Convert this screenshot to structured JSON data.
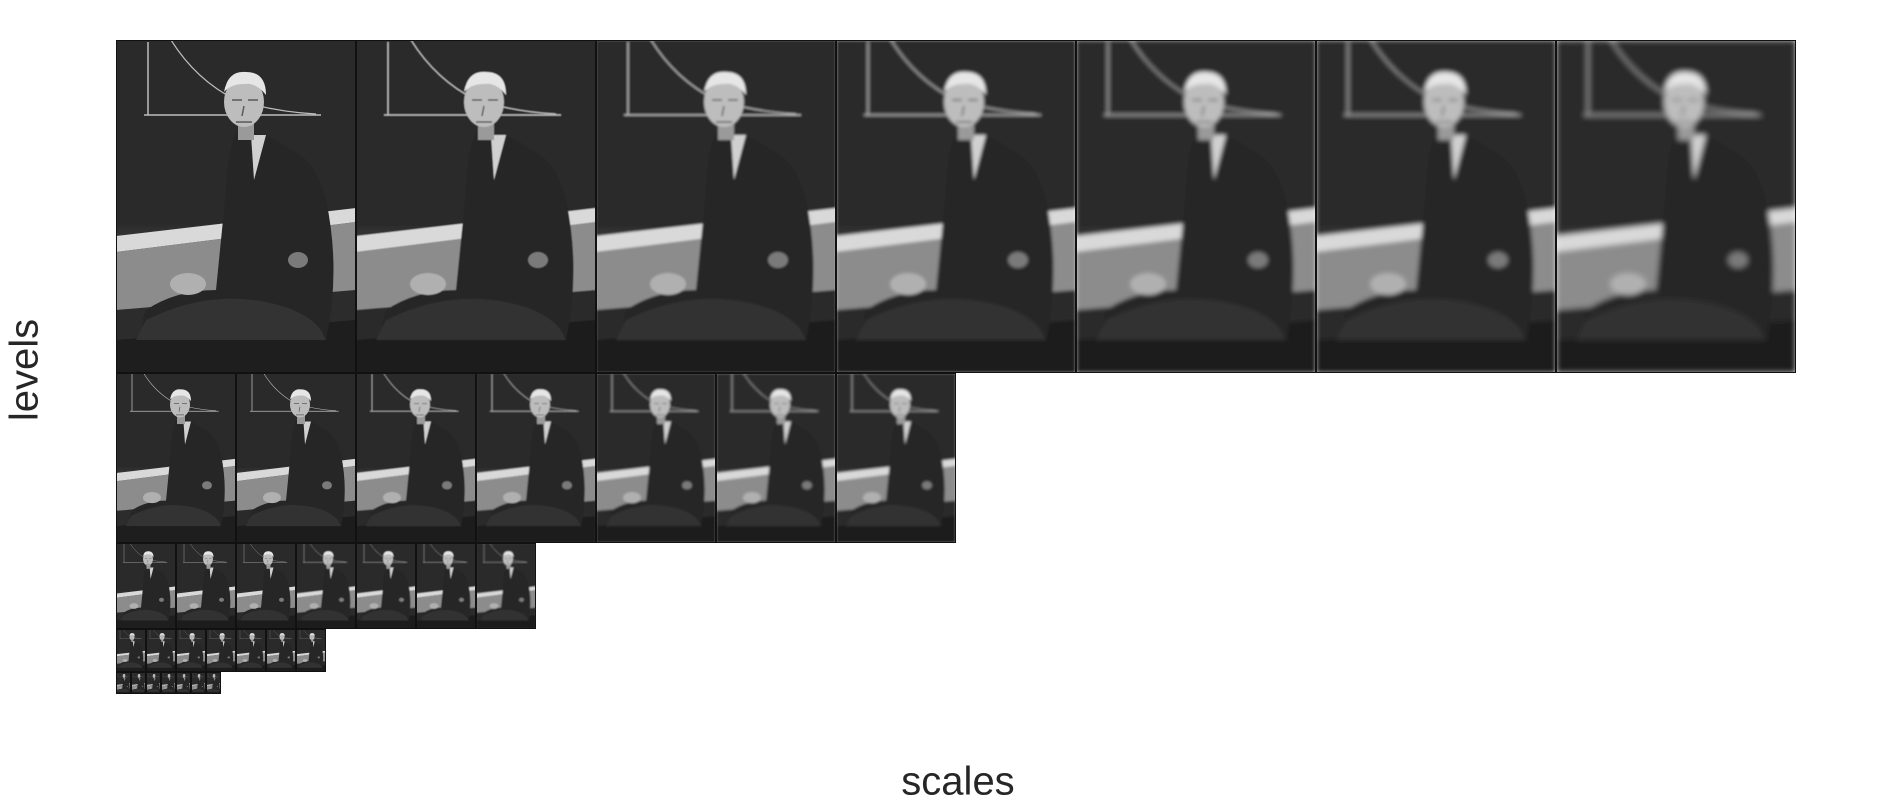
{
  "figure": {
    "xlabel": "scales",
    "ylabel": "levels"
  },
  "pyramid": {
    "levels": 5,
    "scales_per_level": 7,
    "blur_per_scale": [
      0,
      0.6,
      1.1,
      1.6,
      2.0,
      2.4,
      2.8
    ],
    "colors": {
      "background": "#ffffff",
      "tile_border": "#111111",
      "chalkboard": "#2a2a2a",
      "chalkboard_low": "#6f6f6f",
      "chalk_rail": "#d9d9d9",
      "floor": "#1e1e1e",
      "suit": "#262626",
      "face": "#bdbdbd",
      "hair": "#e6e6e6",
      "chalk_lines": "#bdbdbd"
    }
  }
}
